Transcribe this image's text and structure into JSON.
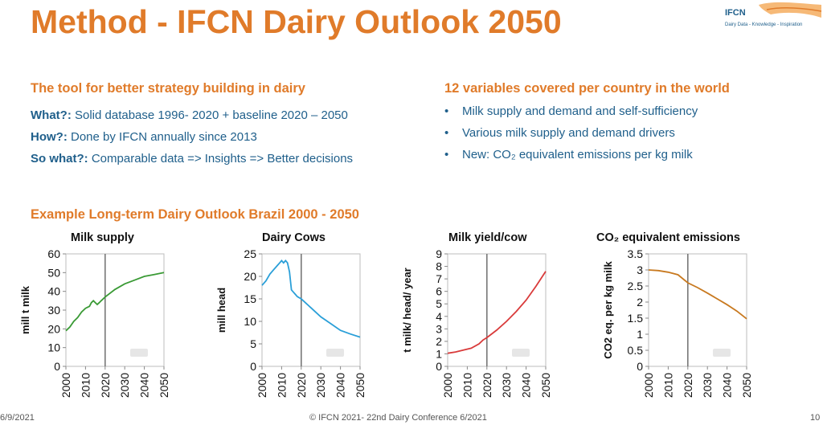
{
  "slide": {
    "title": "Method - IFCN Dairy Outlook 2050",
    "logo": {
      "name": "IFCN",
      "tagline": "Dairy Data - Knowledge - Inspiration"
    },
    "left_heading": "The tool for better strategy building in dairy",
    "rows": [
      {
        "label": "What?:",
        "text": "Solid database 1996- 2020 + baseline 2020 – 2050"
      },
      {
        "label": "How?:",
        "text": "Done by IFCN annually since 2013"
      },
      {
        "label": "So what?:",
        "text": "Comparable data => Insights => Better decisions"
      }
    ],
    "right_heading": "12 variables covered per country in the world",
    "bullets": [
      "Milk supply and demand and self-sufficiency",
      "Various milk supply and demand drivers",
      "New: CO₂ equivalent emissions per kg milk"
    ],
    "example_heading": "Example Long-term Dairy Outlook Brazil 2000 - 2050",
    "footer": {
      "date": "6/9/2021",
      "center": "© IFCN 2021- 22nd Dairy Conference 6/2021",
      "page": "10"
    }
  },
  "chart_data": [
    {
      "type": "line",
      "title": "Milk supply",
      "ylabel": "mill t milk",
      "xlabel": "",
      "ylim": [
        0,
        60
      ],
      "yticks": [
        0,
        10,
        20,
        30,
        40,
        50,
        60
      ],
      "xticks": [
        2000,
        2010,
        2020,
        2030,
        2040,
        2050
      ],
      "vline": 2020,
      "color": "#3a9a35",
      "series": [
        {
          "x": [
            2000,
            2002,
            2004,
            2006,
            2008,
            2010,
            2012,
            2013,
            2014,
            2015,
            2016,
            2017,
            2018,
            2020,
            2025,
            2030,
            2035,
            2040,
            2045,
            2050
          ],
          "values": [
            19,
            21,
            24,
            26,
            29,
            31,
            32,
            34,
            35,
            34,
            33,
            34,
            35,
            37,
            41,
            44,
            46,
            48,
            49,
            50
          ]
        }
      ]
    },
    {
      "type": "line",
      "title": "Dairy Cows",
      "ylabel": "mill head",
      "xlabel": "",
      "ylim": [
        0,
        25
      ],
      "yticks": [
        0,
        5,
        10,
        15,
        20,
        25
      ],
      "xticks": [
        2000,
        2010,
        2020,
        2030,
        2040,
        2050
      ],
      "vline": 2020,
      "color": "#2a9fd8",
      "series": [
        {
          "x": [
            2000,
            2002,
            2004,
            2006,
            2008,
            2009,
            2010,
            2011,
            2012,
            2013,
            2014,
            2015,
            2016,
            2017,
            2018,
            2020,
            2025,
            2030,
            2035,
            2040,
            2045,
            2050
          ],
          "values": [
            18,
            19,
            20.5,
            21.5,
            22.5,
            23,
            23.5,
            23,
            23.5,
            23,
            21,
            17,
            16.5,
            16,
            15.5,
            15,
            13,
            11,
            9.5,
            8,
            7.2,
            6.5
          ]
        }
      ]
    },
    {
      "type": "line",
      "title": "Milk yield/cow",
      "ylabel": "t milk/ head/ year",
      "xlabel": "",
      "ylim": [
        0,
        9
      ],
      "yticks": [
        0,
        1,
        2,
        3,
        4,
        5,
        6,
        7,
        8,
        9
      ],
      "xticks": [
        2000,
        2010,
        2020,
        2030,
        2040,
        2050
      ],
      "vline": 2020,
      "color": "#d93a3a",
      "series": [
        {
          "x": [
            2000,
            2004,
            2008,
            2012,
            2016,
            2018,
            2020,
            2025,
            2030,
            2035,
            2040,
            2045,
            2050
          ],
          "values": [
            1.05,
            1.15,
            1.3,
            1.45,
            1.8,
            2.1,
            2.3,
            2.9,
            3.6,
            4.4,
            5.3,
            6.4,
            7.6
          ]
        }
      ]
    },
    {
      "type": "line",
      "title": "CO₂ equivalent emissions",
      "ylabel": "CO2 eq. per kg milk",
      "xlabel": "",
      "ylim": [
        0,
        3.5
      ],
      "yticks": [
        0,
        0.5,
        1,
        1.5,
        2,
        2.5,
        3,
        3.5
      ],
      "xticks": [
        2000,
        2010,
        2020,
        2030,
        2040,
        2050
      ],
      "vline": 2020,
      "color": "#c8791f",
      "series": [
        {
          "x": [
            2000,
            2005,
            2010,
            2015,
            2018,
            2020,
            2025,
            2030,
            2035,
            2040,
            2045,
            2050
          ],
          "values": [
            3.0,
            2.98,
            2.93,
            2.85,
            2.7,
            2.6,
            2.45,
            2.28,
            2.1,
            1.92,
            1.72,
            1.48
          ]
        }
      ]
    }
  ]
}
